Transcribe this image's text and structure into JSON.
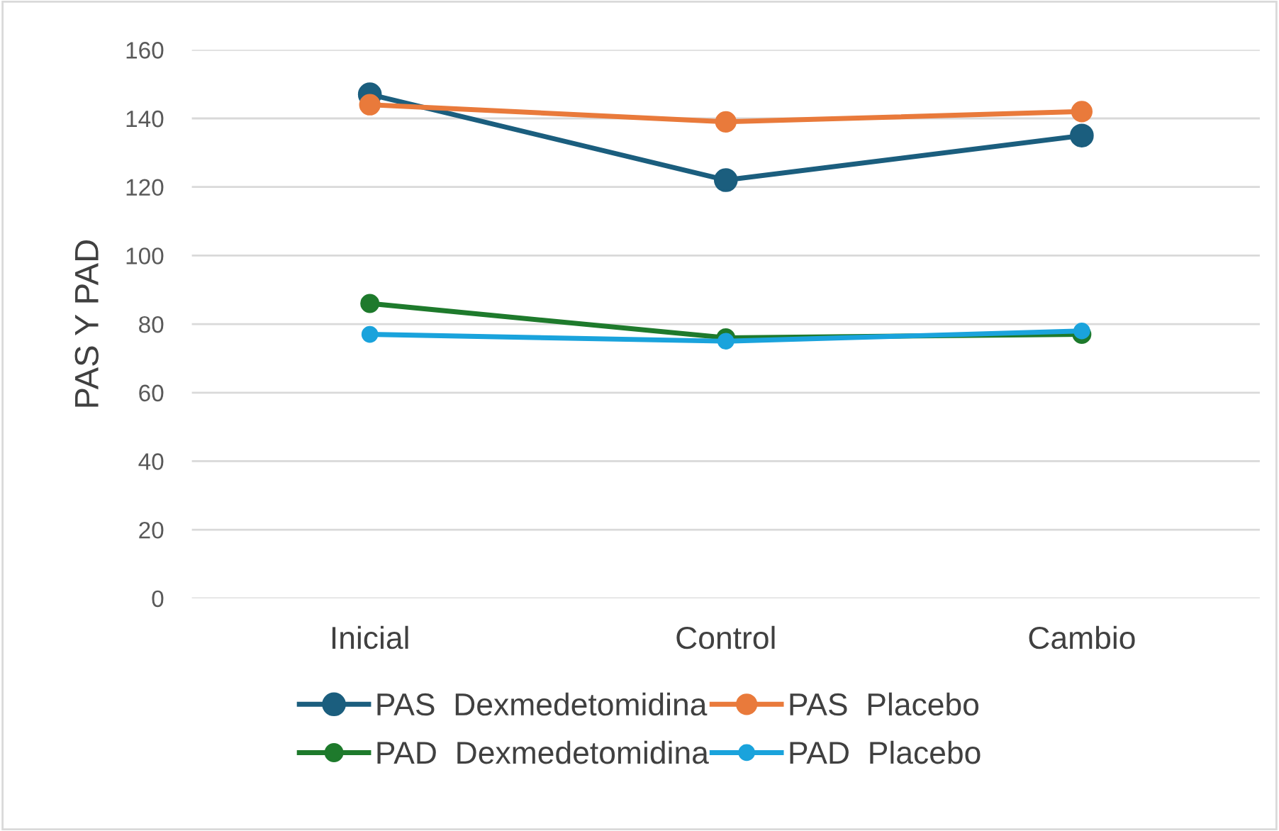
{
  "chart_data": {
    "type": "line",
    "ylabel": "PAS Y PAD",
    "categories": [
      "Inicial",
      "Control",
      "Cambio"
    ],
    "series": [
      {
        "name": "PAS  Dexmedetomidina",
        "color": "#1b5e7e",
        "values": [
          147,
          122,
          135
        ]
      },
      {
        "name": "PAS  Placebo",
        "color": "#e97a3b",
        "values": [
          144,
          139,
          142
        ]
      },
      {
        "name": "PAD  Dexmedetomidina",
        "color": "#1e7a2c",
        "values": [
          86,
          76,
          77
        ]
      },
      {
        "name": "PAD  Placebo",
        "color": "#1aa3dc",
        "values": [
          77,
          75,
          78
        ]
      }
    ],
    "ylim": [
      0,
      160
    ],
    "yticks": [
      0,
      20,
      40,
      60,
      80,
      100,
      120,
      140,
      160
    ],
    "grid": "y",
    "legend": "bottom",
    "marker": "circle",
    "line_style": "solid"
  }
}
